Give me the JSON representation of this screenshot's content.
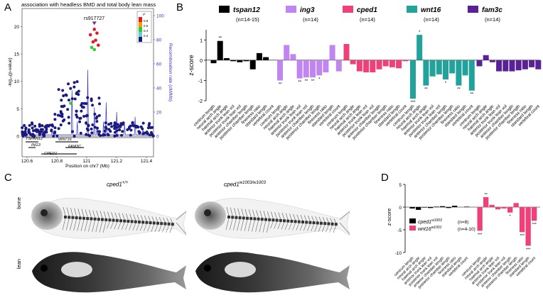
{
  "panels": {
    "a": "A",
    "b": "B",
    "c": "C",
    "d": "D"
  },
  "panel_a": {
    "title": "association with headless BMD and total body lean mass",
    "snp": "rs917727",
    "ylabel_left": "-log₁₀(p-value)",
    "ylabel_right": "Recombination rate (cM/Mb)",
    "xlabel": "Position on chr7 (Mb)",
    "yticks_left": [
      "0",
      "5",
      "10",
      "15",
      "20"
    ],
    "yticks_right": [
      "0",
      "20",
      "40",
      "60",
      "80",
      "100"
    ],
    "xticks": [
      "120.6",
      "120.8",
      "121",
      "121.2",
      "121.4"
    ],
    "legend_title": "r²",
    "legend_values": [
      "0.8",
      "0.6",
      "0.4",
      "0.2"
    ],
    "legend_colors": [
      "#e41a1c",
      "#ff9900",
      "#33cc33",
      "#66cccc",
      "#1a1a80"
    ],
    "genes": [
      "TSPAN12",
      "ING3",
      "WNT16",
      "CPED1",
      "FAM3C"
    ],
    "points_color_main": "#1a1a80"
  },
  "chart_data": [
    {
      "type": "bar",
      "ylabel": "z-score",
      "ylim": [
        -2,
        1.5
      ],
      "yticks": [
        "-2",
        "-1",
        "0",
        "1"
      ],
      "groups": [
        {
          "name": "tspan12",
          "n": "(n=14-15)",
          "color": "#000000",
          "values": [
            -0.15,
            0.95,
            0.1,
            -0.05,
            -0.1,
            -0.05,
            -0.45,
            0.35,
            0.15,
            0.0
          ],
          "stars": [
            "",
            "**",
            "",
            "",
            "",
            "",
            "",
            "",
            "",
            ""
          ]
        },
        {
          "name": "ing3",
          "n": "(n=14)",
          "color": "#c185f2",
          "values": [
            -1.0,
            0.75,
            0.3,
            -0.9,
            -0.85,
            -0.85,
            -0.75,
            -0.6,
            0.75,
            -0.55
          ],
          "stars": [
            "**",
            "",
            "",
            "**",
            "**",
            "**",
            "*",
            "",
            "",
            ""
          ]
        },
        {
          "name": "cped1",
          "n": "(n=14)",
          "color": "#f0407a",
          "values": [
            0.8,
            -0.2,
            -0.55,
            -0.6,
            -0.6,
            -0.45,
            -0.3,
            -0.35,
            -0.4,
            -0.05
          ],
          "stars": [
            "",
            "",
            "",
            "",
            "",
            "",
            "",
            "",
            "",
            ""
          ]
        },
        {
          "name": "wnt16",
          "n": "(n=14)",
          "color": "#21a29a",
          "values": [
            -1.9,
            1.25,
            -1.25,
            -0.8,
            -0.7,
            -0.95,
            -0.65,
            -1.25,
            -0.75,
            -1.5
          ],
          "stars": [
            "***",
            "*",
            "**",
            "",
            "",
            "*",
            "",
            "**",
            "",
            "**"
          ]
        },
        {
          "name": "fam3c",
          "n": "(n=14)",
          "color": "#5a2196",
          "values": [
            -0.3,
            0.25,
            -0.1,
            -0.55,
            -0.55,
            -0.55,
            -0.5,
            -0.45,
            -0.35,
            -0.45
          ],
          "stars": [
            "",
            "",
            "",
            "",
            "",
            "",
            "",
            "",
            "",
            ""
          ]
        }
      ],
      "categories": [
        "centrum length",
        "neural arch angle",
        "haemal arch angle",
        "anterior trunk lean vol",
        "posterior trunk lean vol",
        "anterior chamber length",
        "posterior chamber length",
        "fineness ratio",
        "standard length",
        "vertebral count"
      ]
    },
    {
      "type": "bar",
      "ylabel": "z-score",
      "ylim": [
        -10,
        5
      ],
      "yticks": [
        "-10",
        "-5",
        "0",
        "5"
      ],
      "groups": [
        {
          "name": "cped1",
          "sup": "w1003",
          "n": "(n=8)",
          "color": "#000000",
          "values": [
            -0.3,
            -0.6,
            -0.1,
            -0.2,
            0.1,
            0.2,
            -0.2,
            0.3,
            0.0,
            0.1
          ],
          "stars": [
            "",
            "",
            "",
            "",
            "",
            "",
            "",
            "",
            "",
            ""
          ]
        },
        {
          "name": "wnt16",
          "sup": "w1001",
          "n": "(n=4-10)",
          "color": "#f0407a",
          "values": [
            -5.2,
            2.2,
            0.5,
            -0.5,
            -0.3,
            -1.2,
            0.9,
            -5.5,
            -8.5,
            -3.0
          ],
          "stars": [
            "***",
            "**",
            "",
            "",
            "",
            "*",
            "",
            "***",
            "***",
            "***"
          ]
        }
      ],
      "categories": [
        "centrum length",
        "neural arch angle",
        "haemal arch angle",
        "anterior trunk lean vol",
        "posterior trunk lean vol",
        "anterior chamber length",
        "posterior chamber length",
        "fineness ratio",
        "standard length",
        "vertebral count"
      ]
    }
  ],
  "panel_c": {
    "label_wt": "cped1",
    "label_wt_sup": "+/+",
    "label_mut": "cped1",
    "label_mut_sup": "w1003/w1003",
    "row_bone": "bone",
    "row_lean": "lean"
  }
}
